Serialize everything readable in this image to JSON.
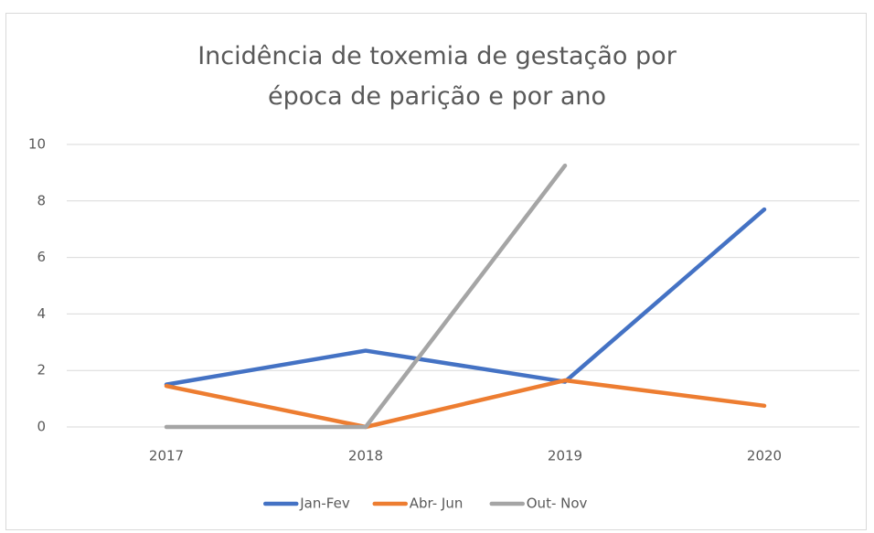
{
  "chart_data": {
    "type": "line",
    "title": "Incidência de toxemia de gestação por época de parição e por ano",
    "categories": [
      "2017",
      "2018",
      "2019",
      "2020"
    ],
    "series": [
      {
        "name": "Jan-Fev",
        "color": "#4472c4",
        "values": [
          1.5,
          2.7,
          1.6,
          7.7
        ]
      },
      {
        "name": "Abr- Jun",
        "color": "#ed7d31",
        "values": [
          1.45,
          0,
          1.65,
          0.75
        ]
      },
      {
        "name": "Out- Nov",
        "color": "#a5a5a5",
        "values": [
          0,
          0,
          9.25,
          null
        ]
      }
    ],
    "ylim": [
      0,
      10
    ],
    "yticks": [
      0,
      2,
      4,
      6,
      8,
      10
    ],
    "grid": true,
    "legend": "bottom"
  }
}
